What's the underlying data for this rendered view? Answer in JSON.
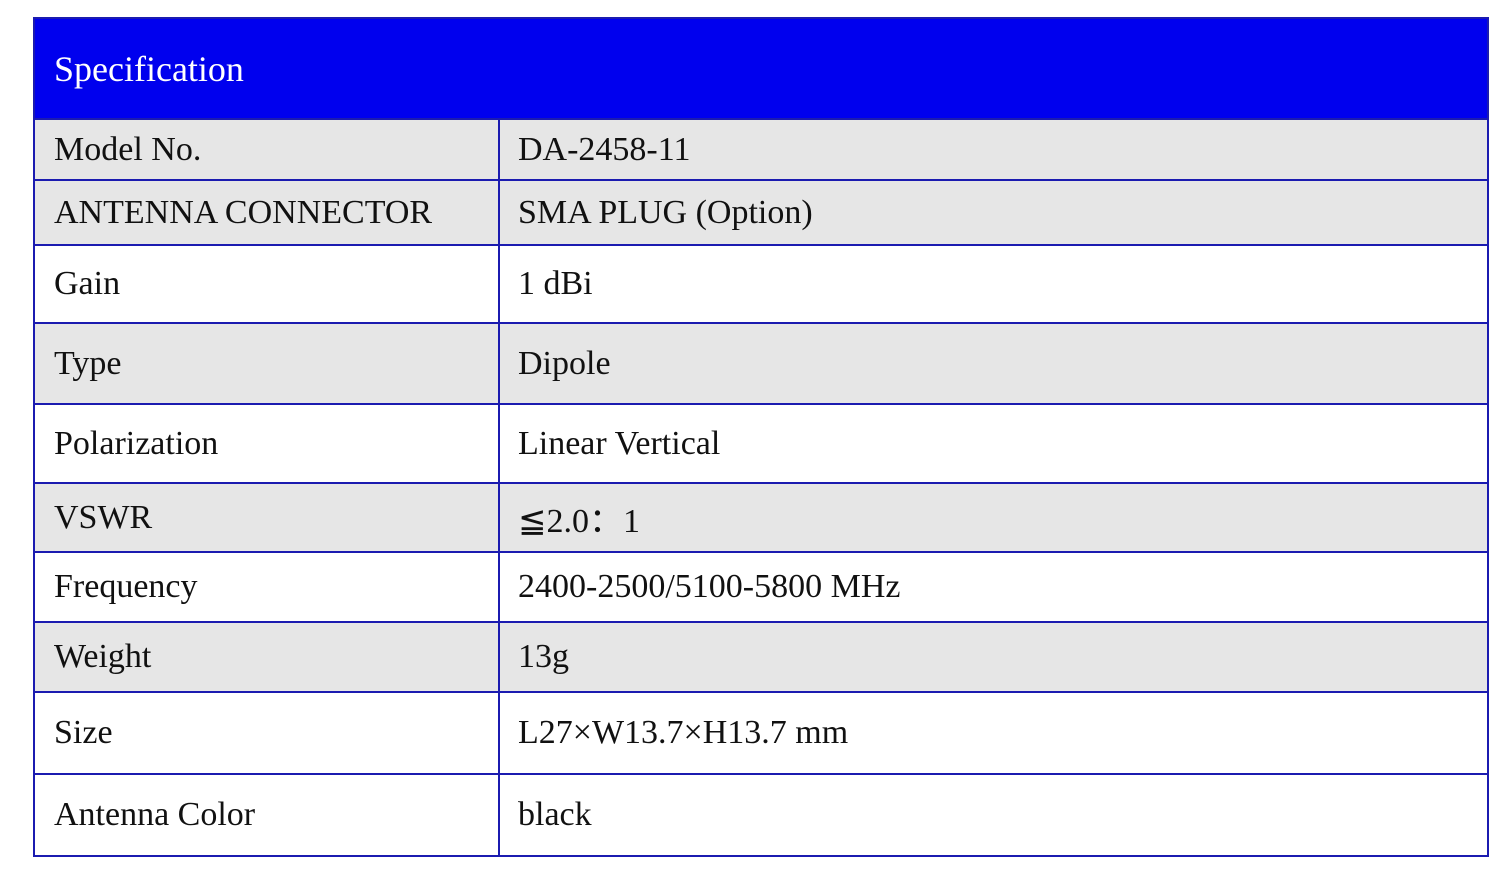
{
  "title": "Specification",
  "colors": {
    "header_bg": "#0000ee",
    "border": "#1b1bb0",
    "gray_row": "#e6e6e6"
  },
  "rows": [
    {
      "label": "Model No.",
      "value": "DA-2458-11",
      "shade": "gray"
    },
    {
      "label": "ANTENNA CONNECTOR",
      "value": "SMA PLUG (Option)",
      "shade": "gray"
    },
    {
      "label": "Gain",
      "value": "1 dBi",
      "shade": "white"
    },
    {
      "label": "Type",
      "value": "Dipole",
      "shade": "gray"
    },
    {
      "label": "Polarization",
      "value": "Linear Vertical",
      "shade": "white"
    },
    {
      "label": "VSWR",
      "value": "≦2.0：1",
      "shade": "gray"
    },
    {
      "label": "Frequency",
      "value": "2400-2500/5100-5800 MHz",
      "shade": "white"
    },
    {
      "label": "Weight",
      "value": "13g",
      "shade": "gray"
    },
    {
      "label": "Size",
      "value": "L27×W13.7×H13.7 mm",
      "shade": "white"
    },
    {
      "label": "Antenna Color",
      "value": "black",
      "shade": "white"
    }
  ]
}
